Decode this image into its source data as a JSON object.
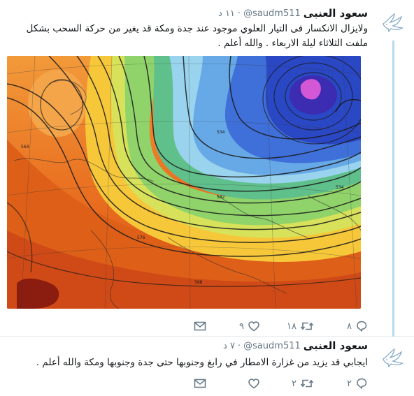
{
  "tweets": [
    {
      "name": "سعود العنبى",
      "handle": "@saudm511",
      "time": "١١ د",
      "text": "ولايزال الانكسار فى التيار العلوي موجود عند جدة ومكة قد يغير من حركة السحب بشكل ملفت الثلاثاء ليلة الاربعاء . والله أعلم .",
      "media": {
        "type": "weather-map",
        "contour_labels": [
          "534",
          "534",
          "564",
          "576",
          "582",
          "588"
        ]
      },
      "actions": {
        "reply_count": "٨",
        "retweet_count": "١٨",
        "like_count": "٩"
      }
    },
    {
      "name": "سعود العنبى",
      "handle": "@saudm511",
      "time": "٧ د",
      "text": "ايجابي قد يزيد من غزارة الامطار في رابغ وجنوبها حتى جدة وجنوبها ومكة والله أعلم .",
      "actions": {
        "reply_count": "٢",
        "retweet_count": "٢",
        "like_count": ""
      }
    }
  ],
  "icons": {
    "avatar": "white-dove-icon",
    "reply": "reply-bubble-icon",
    "retweet": "retweet-icon",
    "like": "heart-icon",
    "dm": "envelope-icon",
    "more": "caret-down-icon"
  },
  "colors": {
    "thread_line": "#b8d9ef",
    "muted": "#657786",
    "name": "#14171a"
  }
}
